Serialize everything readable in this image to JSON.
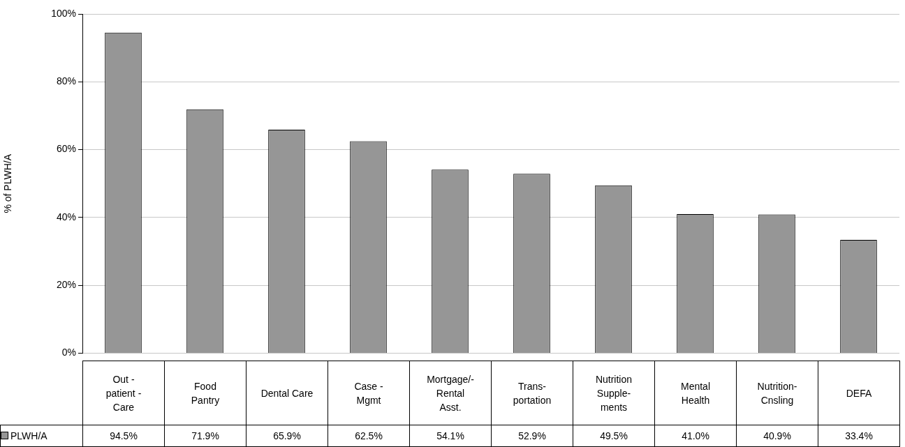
{
  "chart_data": {
    "type": "bar",
    "ylabel": "% of PLWH/A",
    "categories": [
      "Out -\npatient -\nCare",
      "Food\nPantry",
      "Dental Care",
      "Case  -\nMgmt",
      "Mortgage/-\nRental\nAsst.",
      "Trans-\nportation",
      "Nutrition\nSupple-\nments",
      "Mental\nHealth",
      "Nutrition-\nCnsling",
      "DEFA"
    ],
    "series": [
      {
        "name": "PLWH/A",
        "color": "#969696",
        "values": [
          94.5,
          71.9,
          65.9,
          62.5,
          54.1,
          52.9,
          49.5,
          41.0,
          40.9,
          33.4
        ],
        "value_labels": [
          "94.5%",
          "71.9%",
          "65.9%",
          "62.5%",
          "54.1%",
          "52.9%",
          "49.5%",
          "41.0%",
          "40.9%",
          "33.4%"
        ]
      }
    ],
    "ylim": [
      0,
      100
    ],
    "yticks": [
      {
        "value": 0,
        "label": "0%"
      },
      {
        "value": 20,
        "label": "20%"
      },
      {
        "value": 40,
        "label": "40%"
      },
      {
        "value": 60,
        "label": "60%"
      },
      {
        "value": 80,
        "label": "80%"
      },
      {
        "value": 100,
        "label": "100%"
      }
    ],
    "grid": "y",
    "legend": "bottom left"
  }
}
